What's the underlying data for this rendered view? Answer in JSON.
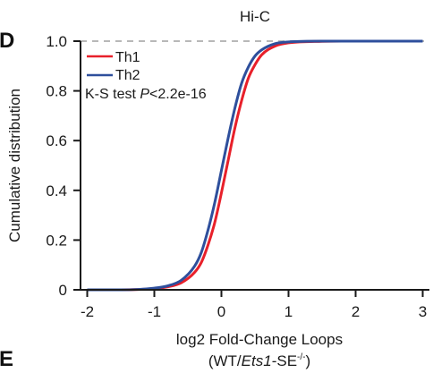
{
  "panels": {
    "current_letter": "D",
    "next_letter": "E"
  },
  "chart_data": {
    "type": "line",
    "title": "Hi-C",
    "xlabel": "log2 Fold-Change Loops",
    "xlabel_line2": {
      "prefix": "(WT/",
      "italic": "Ets1",
      "middle": "-SE",
      "superscript": "-/-",
      "suffix": ")"
    },
    "ylabel": "Cumulative distribution",
    "xlim": [
      -2.1,
      3.1
    ],
    "ylim": [
      0,
      1.0
    ],
    "x_ticks": [
      -2,
      -1,
      0,
      1,
      2,
      3
    ],
    "x_tick_labels": [
      "-2",
      "-1",
      "0",
      "1",
      "2",
      "3"
    ],
    "y_ticks": [
      0,
      0.2,
      0.4,
      0.6,
      0.8,
      1.0
    ],
    "y_tick_labels": [
      "0",
      "0.2",
      "0.4",
      "0.6",
      "0.8",
      "1.0"
    ],
    "reference_lines": [
      0,
      1.0
    ],
    "legend": {
      "position": "top-left",
      "entries": [
        "Th1",
        "Th2"
      ]
    },
    "annotation": {
      "prefix": "K-S test ",
      "italic": "P",
      "suffix": "<2.2e-16"
    },
    "colors": {
      "Th1": "#e8202a",
      "Th2": "#2e4f9c",
      "reference": "#b8b8b8"
    },
    "x": [
      -2.0,
      -1.5,
      -1.0,
      -0.8,
      -0.6,
      -0.4,
      -0.3,
      -0.2,
      -0.1,
      0.0,
      0.1,
      0.2,
      0.3,
      0.4,
      0.5,
      0.6,
      0.8,
      1.0,
      1.5,
      2.0,
      3.0
    ],
    "series": [
      {
        "name": "Th1",
        "values": [
          0.0,
          0.0,
          0.005,
          0.012,
          0.028,
          0.07,
          0.11,
          0.18,
          0.27,
          0.39,
          0.52,
          0.65,
          0.76,
          0.85,
          0.905,
          0.945,
          0.98,
          0.993,
          0.999,
          1.0,
          1.0
        ]
      },
      {
        "name": "Th2",
        "values": [
          0.0,
          0.0,
          0.007,
          0.016,
          0.038,
          0.095,
          0.15,
          0.24,
          0.35,
          0.48,
          0.61,
          0.73,
          0.83,
          0.895,
          0.94,
          0.965,
          0.99,
          0.997,
          1.0,
          1.0,
          1.0
        ]
      }
    ]
  }
}
